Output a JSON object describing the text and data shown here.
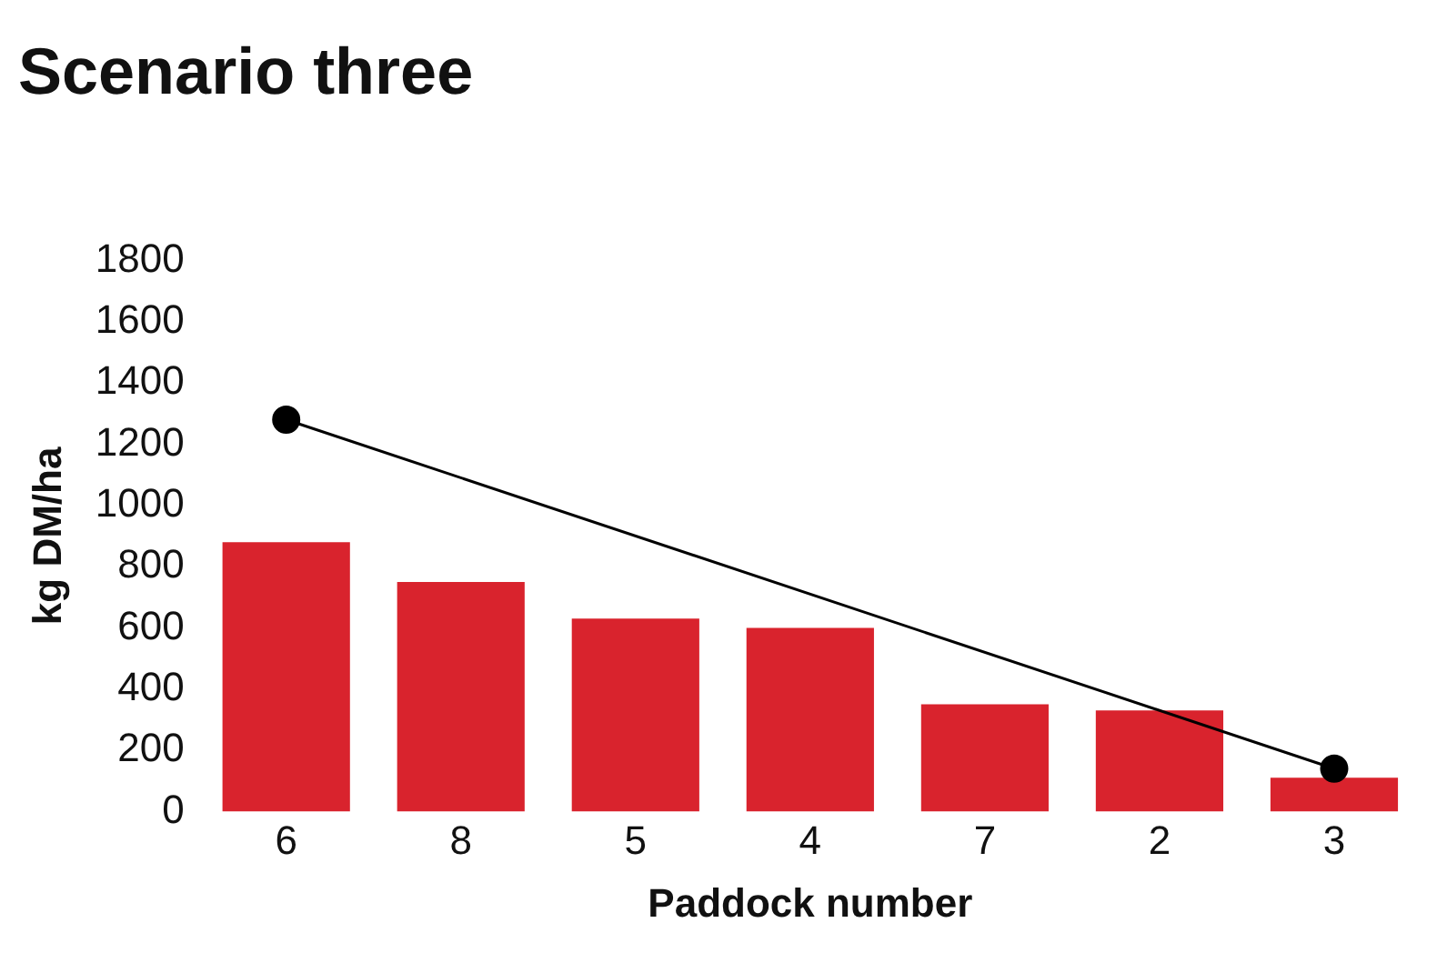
{
  "chart_data": {
    "type": "bar",
    "title": "Scenario three",
    "xlabel": "Paddock number",
    "ylabel": "kg DM/ha",
    "categories": [
      "6",
      "8",
      "5",
      "4",
      "7",
      "2",
      "3"
    ],
    "series": [
      {
        "color": "#d9232d",
        "values": [
          880,
          750,
          630,
          600,
          350,
          330,
          110
        ]
      },
      {
        "type": "line",
        "color": "#000000",
        "marker": "circle",
        "values": [
          1280,
          null,
          null,
          null,
          null,
          null,
          140
        ]
      }
    ],
    "ylim": [
      0,
      1800
    ],
    "yticks": [
      0,
      200,
      400,
      600,
      800,
      1000,
      1200,
      1400,
      1600,
      1800
    ],
    "grid": false,
    "legend": false
  }
}
